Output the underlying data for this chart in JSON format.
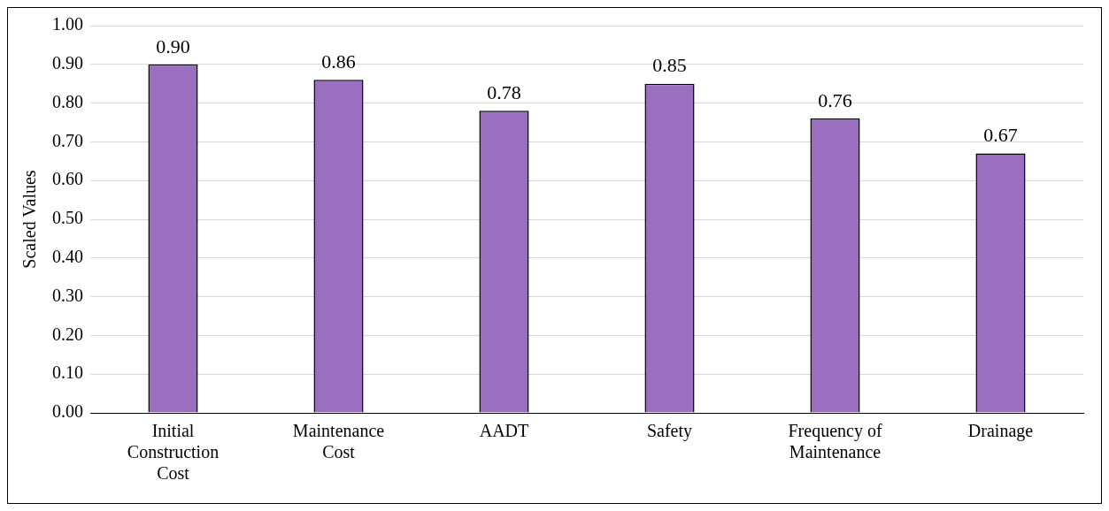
{
  "chart_data": {
    "type": "bar",
    "ylabel": "Scaled Values",
    "categories": [
      "Initial Construction Cost",
      "Maintenance Cost",
      "AADT",
      "Safety",
      "Frequency of Maintenance",
      "Drainage"
    ],
    "values": [
      0.9,
      0.86,
      0.78,
      0.85,
      0.76,
      0.67
    ],
    "color": "#9b6fc0",
    "value_labels": [
      "0.90",
      "0.86",
      "0.78",
      "0.85",
      "0.76",
      "0.67"
    ],
    "ylim": [
      0,
      1
    ],
    "yticks": [
      {
        "value": 0,
        "label": "0.00"
      },
      {
        "value": 0.1,
        "label": "0.10"
      },
      {
        "value": 0.2,
        "label": "0.20"
      },
      {
        "value": 0.3,
        "label": "0.30"
      },
      {
        "value": 0.4,
        "label": "0.40"
      },
      {
        "value": 0.5,
        "label": "0.50"
      },
      {
        "value": 0.6,
        "label": "0.60"
      },
      {
        "value": 0.7,
        "label": "0.70"
      },
      {
        "value": 0.8,
        "label": "0.80"
      },
      {
        "value": 0.9,
        "label": "0.90"
      },
      {
        "value": 1,
        "label": "1.00"
      }
    ],
    "grid": "y",
    "legend": false
  }
}
